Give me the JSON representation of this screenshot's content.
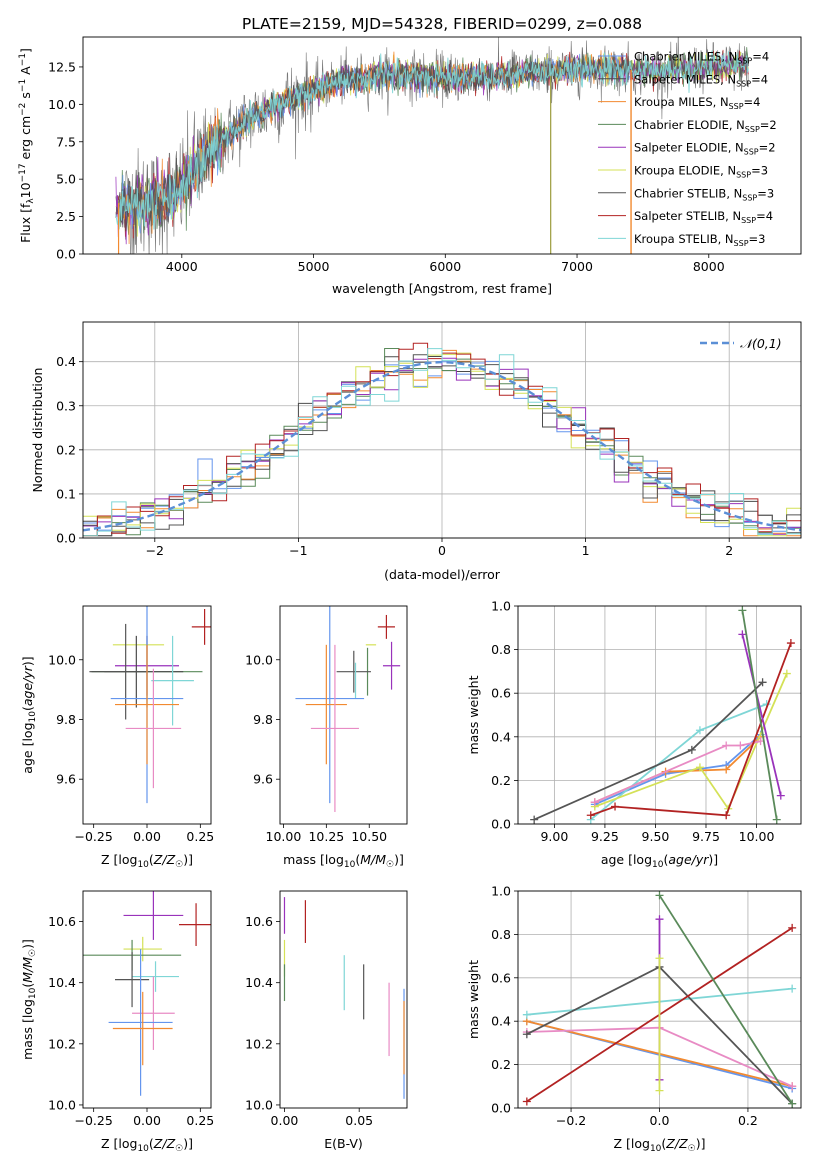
{
  "title": "PLATE=2159, MJD=54328, FIBERID=0299, z=0.088",
  "colors": {
    "Chabrier MILES": "#6495ed",
    "Salpeter MILES": "#4b4b4b",
    "Kroupa MILES": "#f28a30",
    "Chabrier ELODIE": "#5a8a5a",
    "Salpeter ELODIE": "#9933bb",
    "Kroupa ELODIE": "#d4e157",
    "Chabrier STELIB": "#555555",
    "Salpeter STELIB": "#b22222",
    "Kroupa STELIB": "#7fd6d6",
    "Pink": "#e88bc4",
    "Gauss": "#5b8fd6"
  },
  "chart_data": [
    {
      "id": "spectrum",
      "type": "line",
      "title": "PLATE=2159, MJD=54328, FIBERID=0299, z=0.088",
      "xlabel": "wavelength [Angstrom, rest frame]",
      "ylabel_parts": [
        "Flux [f",
        "λ",
        "10",
        "−17",
        " erg cm",
        "−2",
        " s",
        "−1",
        " A",
        "−1",
        "]"
      ],
      "xlim": [
        3250,
        8700
      ],
      "ylim": [
        0,
        14.5
      ],
      "xticks": [
        4000,
        5000,
        6000,
        7000,
        8000
      ],
      "yticks": [
        0.0,
        2.5,
        5.0,
        7.5,
        10.0,
        12.5
      ],
      "continuum": [
        [
          3500,
          3.0
        ],
        [
          3800,
          3.4
        ],
        [
          4000,
          4.3
        ],
        [
          4200,
          6.8
        ],
        [
          4500,
          9.0
        ],
        [
          4800,
          10.3
        ],
        [
          5200,
          11.6
        ],
        [
          5600,
          12.0
        ],
        [
          6000,
          11.8
        ],
        [
          6400,
          11.9
        ],
        [
          6800,
          12.2
        ],
        [
          7200,
          12.4
        ],
        [
          7600,
          12.2
        ],
        [
          8000,
          12.5
        ],
        [
          8300,
          12.6
        ]
      ],
      "legend": [
        {
          "main": "Chabrier MILES, N",
          "sub": "SSP",
          "tail": "=4",
          "key": "Chabrier MILES"
        },
        {
          "main": "Salpeter MILES, N",
          "sub": "SSP",
          "tail": "=4",
          "key": "Salpeter MILES"
        },
        {
          "main": "Kroupa MILES, N",
          "sub": "SSP",
          "tail": "=4",
          "key": "Kroupa MILES"
        },
        {
          "main": "Chabrier ELODIE, N",
          "sub": "SSP",
          "tail": "=2",
          "key": "Chabrier ELODIE"
        },
        {
          "main": "Salpeter ELODIE, N",
          "sub": "SSP",
          "tail": "=2",
          "key": "Salpeter ELODIE"
        },
        {
          "main": "Kroupa ELODIE, N",
          "sub": "SSP",
          "tail": "=3",
          "key": "Kroupa ELODIE"
        },
        {
          "main": "Chabrier STELIB, N",
          "sub": "SSP",
          "tail": "=3",
          "key": "Chabrier STELIB"
        },
        {
          "main": "Salpeter STELIB, N",
          "sub": "SSP",
          "tail": "=4",
          "key": "Salpeter STELIB"
        },
        {
          "main": "Kroupa STELIB, N",
          "sub": "SSP",
          "tail": "=3",
          "key": "Kroupa STELIB"
        }
      ],
      "legend_position": "right"
    },
    {
      "id": "residuals",
      "type": "line",
      "xlabel": "(data-model)/error",
      "ylabel": "Normed distribution",
      "xlim": [
        -2.5,
        2.5
      ],
      "ylim": [
        0,
        0.49
      ],
      "xticks": [
        -2,
        -1,
        0,
        1,
        2
      ],
      "yticks": [
        0.0,
        0.1,
        0.2,
        0.3,
        0.4
      ],
      "grid": true,
      "bins": [
        -2.5,
        -2.4,
        -2.3,
        -2.2,
        -2.1,
        -2.0,
        -1.9,
        -1.8,
        -1.7,
        -1.6,
        -1.5,
        -1.4,
        -1.3,
        -1.2,
        -1.1,
        -1.0,
        -0.9,
        -0.8,
        -0.7,
        -0.6,
        -0.5,
        -0.4,
        -0.3,
        -0.2,
        -0.1,
        0.0,
        0.1,
        0.2,
        0.3,
        0.4,
        0.5,
        0.6,
        0.7,
        0.8,
        0.9,
        1.0,
        1.1,
        1.2,
        1.3,
        1.4,
        1.5,
        1.6,
        1.7,
        1.8,
        1.9,
        2.0,
        2.1,
        2.2,
        2.3,
        2.4,
        2.5
      ],
      "gaussian_label": "𝒩(0,1)"
    },
    {
      "id": "age-vs-z",
      "type": "scatter",
      "xlabel": "Z [log10(Z/Z☉)]",
      "ylabel": "age  [log10(age/yr)]",
      "xlim": [
        -0.3,
        0.3
      ],
      "ylim": [
        9.45,
        10.18
      ],
      "xticks": [
        -0.25,
        0.0,
        0.25
      ],
      "yticks": [
        9.6,
        9.8,
        10.0
      ],
      "points": [
        {
          "key": "Salpeter STELIB",
          "x": 0.27,
          "xe": 0.06,
          "y": 10.11,
          "ye": 0.06
        },
        {
          "key": "Kroupa ELODIE",
          "x": -0.04,
          "xe": 0.12,
          "y": 10.05,
          "ye": 0.0
        },
        {
          "key": "Salpeter ELODIE",
          "x": 0.0,
          "xe": 0.15,
          "y": 9.98,
          "ye": 0.1
        },
        {
          "key": "Chabrier ELODIE",
          "x": 0.0,
          "xe": 0.26,
          "y": 9.96,
          "ye": 0.12
        },
        {
          "key": "Salpeter MILES",
          "x": -0.05,
          "xe": 0.22,
          "y": 9.96,
          "ye": 0.12
        },
        {
          "key": "Kroupa STELIB",
          "x": 0.12,
          "xe": 0.1,
          "y": 9.93,
          "ye": 0.15
        },
        {
          "key": "Chabrier STELIB",
          "x": -0.1,
          "xe": 0.1,
          "y": 9.96,
          "ye": 0.16
        },
        {
          "key": "Chabrier MILES",
          "x": 0.0,
          "xe": 0.17,
          "y": 9.87,
          "ye": 0.35
        },
        {
          "key": "Kroupa MILES",
          "x": 0.0,
          "xe": 0.15,
          "y": 9.85,
          "ye": 0.2
        },
        {
          "key": "Pink",
          "x": 0.03,
          "xe": 0.13,
          "y": 9.77,
          "ye": 0.2
        }
      ]
    },
    {
      "id": "age-vs-mass",
      "type": "scatter",
      "xlabel": "mass [log10(M/M☉)]",
      "xlim": [
        9.98,
        10.72
      ],
      "ylim": [
        9.45,
        10.18
      ],
      "xticks": [
        10.0,
        10.25,
        10.5
      ],
      "yticks": [
        9.6,
        9.8,
        10.0
      ],
      "points": [
        {
          "key": "Salpeter STELIB",
          "x": 10.6,
          "xe": 0.05,
          "y": 10.11,
          "ye": 0.04
        },
        {
          "key": "Kroupa ELODIE",
          "x": 10.51,
          "xe": 0.03,
          "y": 10.05,
          "ye": 0.0
        },
        {
          "key": "Salpeter ELODIE",
          "x": 10.63,
          "xe": 0.05,
          "y": 9.98,
          "ye": 0.08
        },
        {
          "key": "Chabrier ELODIE",
          "x": 10.49,
          "xe": 0.0,
          "y": 9.96,
          "ye": 0.08
        },
        {
          "key": "Chabrier STELIB",
          "x": 10.41,
          "xe": 0.1,
          "y": 9.96,
          "ye": 0.07
        },
        {
          "key": "Kroupa STELIB",
          "x": 10.42,
          "xe": 0.0,
          "y": 9.93,
          "ye": 0.06
        },
        {
          "key": "Chabrier MILES",
          "x": 10.27,
          "xe": 0.2,
          "y": 9.87,
          "ye": 0.35
        },
        {
          "key": "Kroupa MILES",
          "x": 10.25,
          "xe": 0.12,
          "y": 9.85,
          "ye": 0.2
        },
        {
          "key": "Pink",
          "x": 10.3,
          "xe": 0.14,
          "y": 9.77,
          "ye": 0.28
        }
      ]
    },
    {
      "id": "weight-vs-age",
      "type": "line",
      "xlabel": "age  [log10(age/yr)]",
      "ylabel": "mass weight",
      "xlim": [
        8.82,
        10.22
      ],
      "ylim": [
        0,
        1.0
      ],
      "xticks": [
        9.0,
        9.25,
        9.5,
        9.75,
        10.0
      ],
      "yticks": [
        0.0,
        0.2,
        0.4,
        0.6,
        0.8,
        1.0
      ],
      "grid": true,
      "series": [
        {
          "key": "Chabrier MILES",
          "x": [
            9.2,
            9.55,
            9.85,
            10.02
          ],
          "y": [
            0.09,
            0.23,
            0.27,
            0.41
          ]
        },
        {
          "key": "Kroupa MILES",
          "x": [
            9.2,
            9.55,
            9.85,
            10.02
          ],
          "y": [
            0.1,
            0.24,
            0.25,
            0.4
          ]
        },
        {
          "key": "Kroupa STELIB",
          "x": [
            9.18,
            9.72,
            10.05
          ],
          "y": [
            0.02,
            0.43,
            0.55
          ]
        },
        {
          "key": "Kroupa ELODIE",
          "x": [
            9.2,
            9.72,
            9.86,
            10.15
          ],
          "y": [
            0.08,
            0.26,
            0.07,
            0.69
          ]
        },
        {
          "key": "Pink",
          "x": [
            9.2,
            9.85,
            9.92,
            10.02
          ],
          "y": [
            0.1,
            0.36,
            0.36,
            0.38
          ]
        },
        {
          "key": "Chabrier STELIB",
          "x": [
            8.9,
            9.68,
            10.03
          ],
          "y": [
            0.02,
            0.34,
            0.65
          ]
        },
        {
          "key": "Salpeter STELIB",
          "x": [
            9.18,
            9.3,
            9.85,
            10.17
          ],
          "y": [
            0.04,
            0.08,
            0.04,
            0.83
          ]
        },
        {
          "key": "Salpeter ELODIE",
          "x": [
            9.93,
            10.12
          ],
          "y": [
            0.87,
            0.13
          ]
        },
        {
          "key": "Chabrier ELODIE",
          "x": [
            9.93,
            10.1
          ],
          "y": [
            0.98,
            0.02
          ]
        }
      ]
    },
    {
      "id": "mass-vs-z",
      "type": "scatter",
      "xlabel": "Z [log10(Z/Z☉)]",
      "ylabel": "mass [log10(M/M☉)]",
      "xlim": [
        -0.3,
        0.3
      ],
      "ylim": [
        9.99,
        10.7
      ],
      "xticks": [
        -0.25,
        0.0,
        0.25
      ],
      "yticks": [
        10.0,
        10.2,
        10.4,
        10.6
      ],
      "points": [
        {
          "key": "Salpeter ELODIE",
          "x": 0.03,
          "xe": 0.14,
          "y": 10.62,
          "ye": 0.08
        },
        {
          "key": "Salpeter STELIB",
          "x": 0.23,
          "xe": 0.08,
          "y": 10.59,
          "ye": 0.07
        },
        {
          "key": "Kroupa ELODIE",
          "x": -0.02,
          "xe": 0.09,
          "y": 10.51,
          "ye": 0.04
        },
        {
          "key": "Chabrier ELODIE",
          "x": -0.07,
          "xe": 0.23,
          "y": 10.49,
          "ye": 0.05
        },
        {
          "key": "Kroupa STELIB",
          "x": 0.04,
          "xe": 0.11,
          "y": 10.42,
          "ye": 0.05
        },
        {
          "key": "Chabrier STELIB",
          "x": -0.07,
          "xe": 0.08,
          "y": 10.41,
          "ye": 0.09
        },
        {
          "key": "Pink",
          "x": 0.03,
          "xe": 0.1,
          "y": 10.3,
          "ye": 0.12
        },
        {
          "key": "Chabrier MILES",
          "x": -0.03,
          "xe": 0.15,
          "y": 10.27,
          "ye": 0.24
        },
        {
          "key": "Kroupa MILES",
          "x": -0.02,
          "xe": 0.14,
          "y": 10.25,
          "ye": 0.12
        }
      ]
    },
    {
      "id": "mass-vs-ebv",
      "type": "scatter",
      "xlabel": "E(B-V)",
      "xlim": [
        -0.003,
        0.082
      ],
      "ylim": [
        9.99,
        10.7
      ],
      "xticks": [
        0.0,
        0.05
      ],
      "yticks": [
        10.0,
        10.2,
        10.4,
        10.6
      ],
      "points": [
        {
          "key": "Salpeter ELODIE",
          "x": 0.0,
          "y": 10.62,
          "ye": 0.06
        },
        {
          "key": "Salpeter STELIB",
          "x": 0.014,
          "y": 10.6,
          "ye": 0.07
        },
        {
          "key": "Kroupa ELODIE",
          "x": 0.0,
          "y": 10.48,
          "ye": 0.06
        },
        {
          "key": "Chabrier ELODIE",
          "x": 0.0,
          "y": 10.4,
          "ye": 0.06
        },
        {
          "key": "Kroupa STELIB",
          "x": 0.04,
          "y": 10.4,
          "ye": 0.09
        },
        {
          "key": "Chabrier STELIB",
          "x": 0.053,
          "y": 10.37,
          "ye": 0.09
        },
        {
          "key": "Pink",
          "x": 0.07,
          "y": 10.28,
          "ye": 0.12
        },
        {
          "key": "Chabrier MILES",
          "x": 0.08,
          "y": 10.2,
          "ye": 0.18
        },
        {
          "key": "Kroupa MILES",
          "x": 0.08,
          "y": 10.22,
          "ye": 0.12
        }
      ]
    },
    {
      "id": "weight-vs-z",
      "type": "line",
      "xlabel": "Z [log10(Z/Z☉)]",
      "ylabel": "mass weight",
      "xlim": [
        -0.32,
        0.32
      ],
      "ylim": [
        0,
        1.0
      ],
      "xticks": [
        -0.2,
        0.0,
        0.2
      ],
      "yticks": [
        0.0,
        0.2,
        0.4,
        0.6,
        0.8,
        1.0
      ],
      "grid": true,
      "series": [
        {
          "key": "Chabrier MILES",
          "x": [
            -0.3,
            0.3
          ],
          "y": [
            0.4,
            0.09
          ]
        },
        {
          "key": "Kroupa MILES",
          "x": [
            -0.3,
            0.3
          ],
          "y": [
            0.4,
            0.1
          ]
        },
        {
          "key": "Kroupa STELIB",
          "x": [
            -0.3,
            0.3
          ],
          "y": [
            0.43,
            0.55
          ]
        },
        {
          "key": "Pink",
          "x": [
            -0.3,
            0.0,
            0.3
          ],
          "y": [
            0.35,
            0.37,
            0.1
          ]
        },
        {
          "key": "Chabrier STELIB",
          "x": [
            -0.3,
            0.0,
            0.3
          ],
          "y": [
            0.34,
            0.65,
            0.02
          ]
        },
        {
          "key": "Salpeter STELIB",
          "x": [
            -0.3,
            0.3
          ],
          "y": [
            0.03,
            0.83
          ]
        },
        {
          "key": "Chabrier ELODIE",
          "x": [
            0.0,
            0.3
          ],
          "y": [
            0.98,
            0.02
          ]
        },
        {
          "key": "Salpeter ELODIE",
          "x": [
            0.0,
            0.0
          ],
          "y": [
            0.87,
            0.13
          ]
        },
        {
          "key": "Kroupa ELODIE",
          "x": [
            0.0,
            0.0
          ],
          "y": [
            0.69,
            0.08
          ]
        }
      ]
    }
  ]
}
